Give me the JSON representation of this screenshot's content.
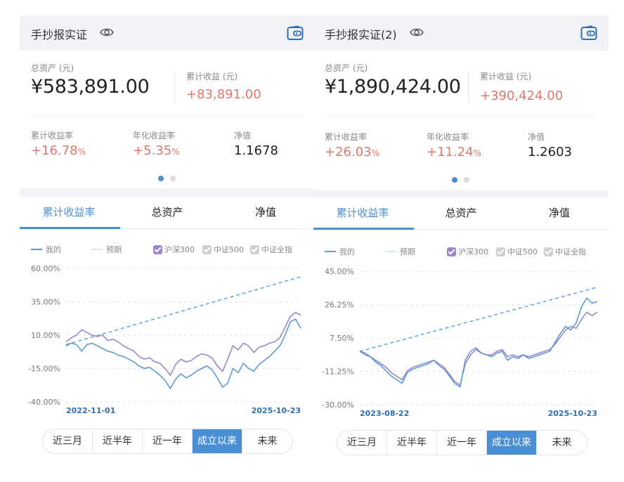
{
  "colors": {
    "accent": "#4a8fd4",
    "gain": "#e0776a",
    "mine_line": "#5b9bd5",
    "expected_line": "#5ba3dc",
    "hs300_line": "#9d86cc"
  },
  "panels": [
    {
      "title": "手抄报实证",
      "total_assets_label": "总资产 (元)",
      "total_assets_value": "¥583,891.00",
      "cum_income_label": "累计收益 (元)",
      "cum_income_value": "+83,891.00",
      "cum_rate_label": "累计收益率",
      "cum_rate_value": "+16.78",
      "annual_rate_label": "年化收益率",
      "annual_rate_value": "+5.35",
      "percent_sign": "%",
      "nav_label": "净值",
      "nav_value": "1.1678",
      "tabs": [
        "累计收益率",
        "总资产",
        "净值"
      ],
      "active_tab": 0,
      "legend": {
        "mine": "我的",
        "expected": "预期",
        "hs300": "沪深300",
        "zz500": "中证500",
        "zzqz": "中证全指"
      },
      "periods": [
        "近三月",
        "近半年",
        "近一年",
        "成立以来",
        "未来"
      ],
      "active_period": 3,
      "chart_data": {
        "type": "line",
        "y_ticks": [
          "60.00%",
          "35.00%",
          "10.00%",
          "-15.00%",
          "-40.00%"
        ],
        "ylim": [
          -40,
          60
        ],
        "x_start": "2022-11-01",
        "x_end": "2025-10-23",
        "series": [
          {
            "name": "我的",
            "values": [
              2,
              4,
              3,
              -2,
              3,
              4,
              2,
              0,
              -2,
              -3,
              -5,
              -6,
              -8,
              -10,
              -13,
              -15,
              -14,
              -17,
              -20,
              -24,
              -30,
              -23,
              -19,
              -22,
              -20,
              -17,
              -15,
              -13,
              -16,
              -22,
              -29,
              -26,
              -15,
              -18,
              -11,
              -15,
              -17,
              -12,
              -9,
              -6,
              -2,
              2,
              10,
              20,
              22,
              15
            ]
          },
          {
            "name": "预期",
            "values": [
              3,
              5.1,
              7.2,
              9.3,
              11.4,
              13.5,
              15.7,
              17.8,
              19.9,
              22,
              24.1,
              26.2,
              28.3,
              30.4,
              32.6,
              34.7,
              36.8,
              38.9,
              41,
              43.1,
              45.2,
              47.4,
              49.5,
              51.6,
              53.7
            ]
          },
          {
            "name": "沪深300",
            "values": [
              5,
              8,
              10,
              14,
              12,
              10,
              9,
              10,
              6,
              7,
              5,
              2,
              0,
              -2,
              -6,
              -8,
              -7,
              -10,
              -11,
              -15,
              -20,
              -12,
              -8,
              -10,
              -9,
              -6,
              -4,
              -5,
              -7,
              -13,
              -17,
              -8,
              2,
              -1,
              4,
              2,
              -3,
              1,
              2,
              4,
              5,
              8,
              16,
              24,
              27,
              25
            ]
          }
        ]
      }
    },
    {
      "title": "手抄报实证(2)",
      "total_assets_label": "总资产 (元)",
      "total_assets_value": "¥1,890,424.00",
      "cum_income_label": "累计收益 (元)",
      "cum_income_value": "+390,424.00",
      "cum_rate_label": "累计收益率",
      "cum_rate_value": "+26.03",
      "annual_rate_label": "年化收益率",
      "annual_rate_value": "+11.24",
      "percent_sign": "%",
      "nav_label": "净值",
      "nav_value": "1.2603",
      "tabs": [
        "累计收益率",
        "总资产",
        "净值"
      ],
      "active_tab": 0,
      "legend": {
        "mine": "我的",
        "expected": "预期",
        "hs300": "沪深300",
        "zz500": "中证500",
        "zzqz": "中证全指"
      },
      "periods": [
        "近三月",
        "近半年",
        "近一年",
        "成立以来",
        "未来"
      ],
      "active_period": 3,
      "chart_data": {
        "type": "line",
        "y_ticks": [
          "45.00%",
          "26.25%",
          "7.50%",
          "-11.25%",
          "-30.00%"
        ],
        "ylim": [
          -30,
          45
        ],
        "x_start": "2023-08-22",
        "x_end": "2025-10-23",
        "series": [
          {
            "name": "我的",
            "values": [
              0,
              -1,
              -3,
              -6,
              -8,
              -11,
              -14,
              -16,
              -18,
              -12,
              -10,
              -9,
              -8,
              -7,
              -5,
              -8,
              -10,
              -14,
              -18,
              -20,
              -5,
              0,
              2,
              -1,
              -2,
              -3,
              -1,
              0,
              -5,
              -3,
              -4,
              -2,
              -4,
              -3,
              -2,
              -1,
              0,
              5,
              10,
              14,
              12,
              16,
              25,
              30,
              27,
              28
            ]
          },
          {
            "name": "预期",
            "values": [
              0,
              1.5,
              3,
              4.5,
              6,
              7.5,
              9,
              10.5,
              12,
              13.5,
              15,
              16.5,
              18,
              19.5,
              21,
              22.5,
              24,
              25.5,
              27,
              28.5,
              30,
              31.5,
              33,
              34.5,
              36
            ]
          },
          {
            "name": "沪深300",
            "values": [
              0,
              -2,
              -3,
              -5,
              -7,
              -9,
              -12,
              -14,
              -16,
              -11,
              -9,
              -8,
              -7,
              -6,
              -5,
              -7,
              -9,
              -13,
              -17,
              -19,
              -7,
              -2,
              1,
              -1,
              -2,
              -2,
              0,
              1,
              -3,
              -2,
              -3,
              -2,
              -3,
              -2,
              -1,
              0,
              1,
              4,
              8,
              12,
              14,
              13,
              18,
              22,
              20,
              22
            ]
          }
        ]
      }
    }
  ]
}
